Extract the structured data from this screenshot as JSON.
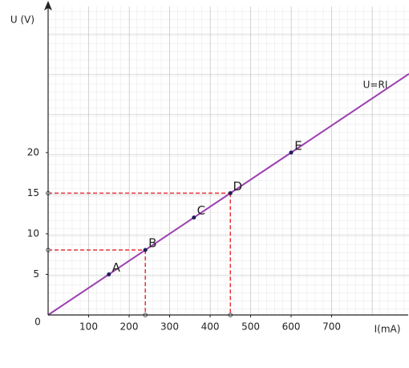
{
  "chart_data": {
    "type": "scatter",
    "xlabel": "I(mA)",
    "ylabel": "U (V)",
    "origin_label": "0",
    "xlim": [
      0,
      891
    ],
    "ylim": [
      0,
      38
    ],
    "xticks": [
      100,
      200,
      300,
      400,
      500,
      600,
      700
    ],
    "yticks": [
      5,
      10,
      15,
      20
    ],
    "grid": true,
    "points": [
      {
        "label": "A",
        "x": 150,
        "y": 5,
        "dashed": false
      },
      {
        "label": "B",
        "x": 240,
        "y": 8,
        "dashed": true
      },
      {
        "label": "C",
        "x": 360,
        "y": 12,
        "dashed": false
      },
      {
        "label": "D",
        "x": 450,
        "y": 15,
        "dashed": true
      },
      {
        "label": "E",
        "x": 600,
        "y": 20,
        "dashed": false
      }
    ],
    "point_color": "#1e1e5a",
    "point_label_color": "#6b6bdc",
    "projection_color": "#e8323a",
    "line": {
      "label": "U=RI",
      "color": "#9b3fb0",
      "x": [
        0,
        891
      ],
      "y": [
        0,
        29.7
      ]
    }
  }
}
